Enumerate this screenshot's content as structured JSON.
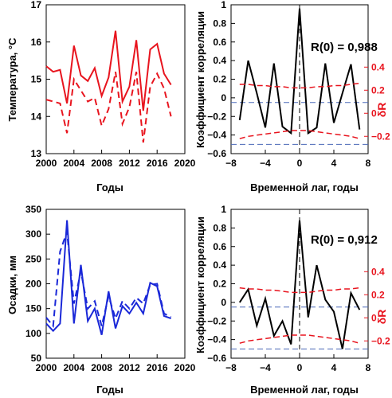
{
  "colors": {
    "temperature": "#e8141e",
    "precipitation": "#1a28d8",
    "correlation": "#000000",
    "delta": "#e8141e",
    "zero_line": "#000000",
    "confidence": "#4a68b8"
  },
  "chart_data": [
    {
      "id": "temperature",
      "type": "line",
      "xlabel": "Годы",
      "ylabel": "Температура, °С",
      "xlim": [
        2000,
        2020
      ],
      "ylim": [
        13,
        17
      ],
      "xticks": [
        2000,
        2004,
        2008,
        2012,
        2016,
        2020
      ],
      "yticks": [
        13,
        14,
        15,
        16,
        17
      ],
      "x": [
        2000,
        2001,
        2002,
        2003,
        2004,
        2005,
        2006,
        2007,
        2008,
        2009,
        2010,
        2011,
        2012,
        2013,
        2014,
        2015,
        2016,
        2017,
        2018
      ],
      "series": [
        {
          "style": "solid",
          "values": [
            15.35,
            15.2,
            15.25,
            14.35,
            15.9,
            15.1,
            14.95,
            15.3,
            14.55,
            15.05,
            16.3,
            14.4,
            14.8,
            16.05,
            14.15,
            15.8,
            15.95,
            15.15,
            14.85
          ]
        },
        {
          "style": "dashed",
          "values": [
            14.45,
            14.4,
            14.35,
            13.55,
            15.0,
            14.7,
            14.4,
            14.5,
            13.75,
            14.2,
            15.2,
            13.8,
            14.25,
            15.2,
            13.3,
            14.8,
            15.15,
            14.75,
            14.0
          ]
        }
      ],
      "grid": false
    },
    {
      "id": "temperature-acf",
      "type": "line",
      "xlabel": "Временной лаг, годы",
      "ylabel": "Коэффициент корреляции",
      "ylabel_right": "δR",
      "annotation": "R(0) = 0,988",
      "xlim": [
        -8,
        8
      ],
      "ylim": [
        -0.6,
        1.0
      ],
      "xticks": [
        -8,
        -4,
        0,
        4,
        8
      ],
      "yticks": [
        -0.6,
        -0.4,
        -0.2,
        0,
        0.2,
        0.4,
        0.6,
        0.8,
        1
      ],
      "yticks_right": [
        0.4,
        0.2,
        0,
        -0.2
      ],
      "right_axis_range": [
        -0.35,
        0.45
      ],
      "x": [
        -7,
        -6,
        -5,
        -4,
        -3,
        -2,
        -1,
        0,
        1,
        2,
        3,
        4,
        5,
        6,
        7
      ],
      "series": [
        {
          "style": "solid",
          "values": [
            -0.24,
            0.4,
            0.05,
            -0.32,
            0.37,
            -0.31,
            -0.38,
            0.96,
            -0.38,
            -0.32,
            0.37,
            -0.27,
            0.05,
            0.36,
            -0.34
          ]
        },
        {
          "style": "dashed",
          "axis": "right",
          "values": [
            0.25,
            0.25,
            0.24,
            0.24,
            0.23,
            0.23,
            0.22,
            0.22,
            0.22,
            0.23,
            0.23,
            0.24,
            0.24,
            0.25,
            0.26
          ]
        },
        {
          "style": "dashed",
          "axis": "right",
          "values": [
            -0.22,
            -0.2,
            -0.19,
            -0.18,
            -0.17,
            -0.16,
            -0.15,
            -0.15,
            -0.15,
            -0.16,
            -0.17,
            -0.18,
            -0.19,
            -0.2,
            -0.22
          ]
        }
      ],
      "reference_lines": [
        -0.05,
        -0.5
      ],
      "grid": false
    },
    {
      "id": "precipitation",
      "type": "line",
      "xlabel": "Годы",
      "ylabel": "Осадки, мм",
      "xlim": [
        2000,
        2020
      ],
      "ylim": [
        50,
        350
      ],
      "xticks": [
        2000,
        2004,
        2008,
        2012,
        2016,
        2020
      ],
      "yticks": [
        50,
        100,
        150,
        200,
        250,
        300,
        350
      ],
      "x": [
        2000,
        2001,
        2002,
        2003,
        2004,
        2005,
        2006,
        2007,
        2008,
        2009,
        2010,
        2011,
        2012,
        2013,
        2014,
        2015,
        2016,
        2017,
        2018
      ],
      "series": [
        {
          "style": "solid",
          "values": [
            120,
            105,
            120,
            328,
            120,
            238,
            125,
            150,
            97,
            185,
            110,
            155,
            140,
            162,
            140,
            202,
            195,
            135,
            130
          ]
        },
        {
          "style": "dashed",
          "values": [
            132,
            115,
            265,
            305,
            160,
            225,
            150,
            165,
            115,
            175,
            130,
            165,
            150,
            172,
            160,
            198,
            200,
            140,
            133
          ]
        }
      ],
      "grid": false
    },
    {
      "id": "precipitation-acf",
      "type": "line",
      "xlabel": "Временной лаг, годы",
      "ylabel": "Коэффициент корреляции",
      "ylabel_right": "δR",
      "annotation": "R(0) = 0,912",
      "xlim": [
        -8,
        8
      ],
      "ylim": [
        -0.6,
        1.0
      ],
      "xticks": [
        -8,
        -4,
        0,
        4,
        8
      ],
      "yticks": [
        -0.6,
        -0.4,
        -0.2,
        0,
        0.2,
        0.4,
        0.6,
        0.8,
        1
      ],
      "yticks_right": [
        0.4,
        0.2,
        0,
        -0.2
      ],
      "right_axis_range": [
        -0.35,
        0.45
      ],
      "x": [
        -7,
        -6,
        -5,
        -4,
        -3,
        -2,
        -1,
        0,
        1,
        2,
        3,
        4,
        5,
        6,
        7
      ],
      "series": [
        {
          "style": "solid",
          "values": [
            0.0,
            0.14,
            -0.25,
            0.04,
            -0.36,
            -0.2,
            -0.45,
            0.88,
            -0.16,
            0.4,
            0.03,
            -0.1,
            -0.5,
            0.1,
            -0.08
          ]
        },
        {
          "style": "dashed",
          "axis": "right",
          "values": [
            0.26,
            0.25,
            0.25,
            0.24,
            0.24,
            0.23,
            0.22,
            0.22,
            0.22,
            0.23,
            0.24,
            0.24,
            0.25,
            0.25,
            0.26
          ]
        },
        {
          "style": "dashed",
          "axis": "right",
          "values": [
            -0.22,
            -0.2,
            -0.19,
            -0.18,
            -0.17,
            -0.16,
            -0.15,
            -0.15,
            -0.15,
            -0.16,
            -0.17,
            -0.18,
            -0.19,
            -0.2,
            -0.22
          ]
        }
      ],
      "reference_lines": [
        -0.05,
        -0.5
      ],
      "grid": false
    }
  ]
}
